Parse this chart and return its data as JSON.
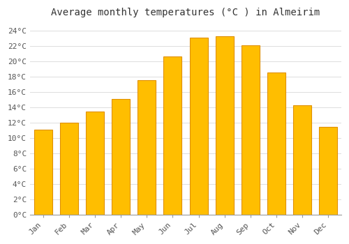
{
  "title": "Average monthly temperatures (°C ) in Almeirim",
  "months": [
    "Jan",
    "Feb",
    "Mar",
    "Apr",
    "May",
    "Jun",
    "Jul",
    "Aug",
    "Sep",
    "Oct",
    "Nov",
    "Dec"
  ],
  "values": [
    11.1,
    12.0,
    13.5,
    15.1,
    17.6,
    20.7,
    23.1,
    23.3,
    22.1,
    18.6,
    14.3,
    11.5
  ],
  "bar_color": "#FFBE00",
  "bar_edge_color": "#E09000",
  "bar_edge_color2": "#FFA500",
  "background_color": "#FFFFFF",
  "plot_bg_color": "#FFFFFF",
  "grid_color": "#DDDDDD",
  "ylim": [
    0,
    25
  ],
  "ytick_step": 2,
  "title_fontsize": 10,
  "tick_fontsize": 8
}
